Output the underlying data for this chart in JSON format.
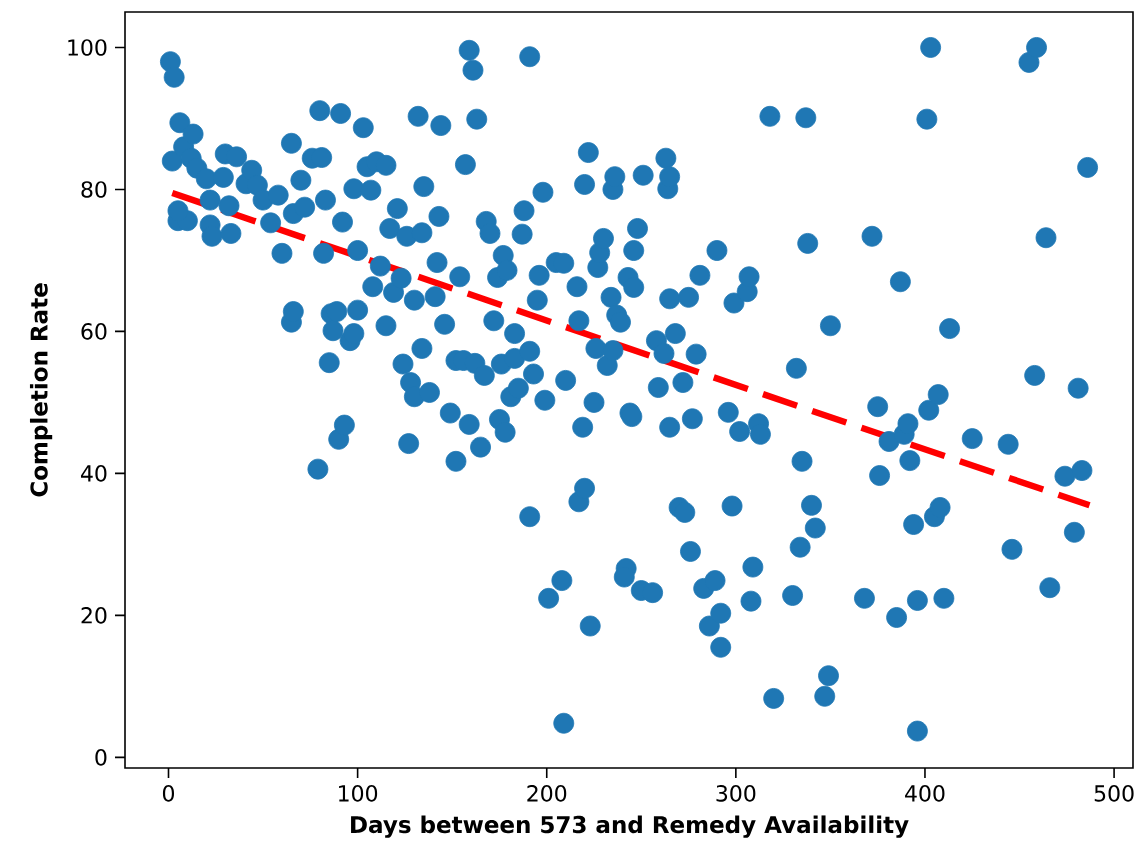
{
  "chart_data": {
    "type": "scatter",
    "xlabel": "Days between 573 and Remedy Availability",
    "ylabel": "Completion Rate",
    "xlim": [
      -23,
      510
    ],
    "ylim": [
      -1.5,
      105
    ],
    "xticks": [
      0,
      100,
      200,
      300,
      400,
      500
    ],
    "yticks": [
      0,
      20,
      40,
      60,
      80,
      100
    ],
    "series": [
      {
        "color": "#1f77b4",
        "marker": "circle",
        "x": [
          1,
          3,
          2,
          6,
          8,
          13,
          5,
          10,
          5,
          12,
          15,
          20,
          22,
          22,
          23,
          30,
          36,
          32,
          33,
          29,
          41,
          44,
          47,
          50,
          54,
          58,
          60,
          65,
          66,
          65,
          66,
          70,
          72,
          76,
          80,
          81,
          79,
          82,
          83,
          85,
          86,
          87,
          89,
          90,
          93,
          91,
          92,
          96,
          98,
          98,
          100,
          100,
          103,
          105,
          107,
          108,
          110,
          112,
          115,
          115,
          117,
          119,
          121,
          123,
          124,
          126,
          127,
          128,
          130,
          130,
          132,
          134,
          135,
          134,
          138,
          142,
          143,
          141,
          144,
          146,
          149,
          152,
          152,
          154,
          156,
          157,
          159,
          161,
          159,
          162,
          163,
          165,
          167,
          168,
          170,
          172,
          174,
          175,
          176,
          177,
          178,
          179,
          181,
          183,
          183,
          185,
          187,
          188,
          191,
          191,
          191,
          193,
          195,
          196,
          198,
          199,
          205,
          201,
          208,
          209,
          210,
          209,
          216,
          217,
          217,
          220,
          219,
          220,
          222,
          223,
          225,
          226,
          227,
          228,
          230,
          232,
          234,
          235,
          235,
          236,
          237,
          239,
          242,
          241,
          243,
          244,
          245,
          246,
          246,
          248,
          250,
          251,
          256,
          258,
          259,
          262,
          263,
          264,
          265,
          265,
          265,
          268,
          270,
          272,
          273,
          275,
          276,
          277,
          279,
          281,
          283,
          286,
          289,
          290,
          292,
          292,
          296,
          298,
          299,
          302,
          306,
          307,
          308,
          309,
          312,
          313,
          318,
          320,
          337,
          332,
          330,
          334,
          335,
          338,
          340,
          342,
          349,
          347,
          350,
          368,
          372,
          375,
          376,
          381,
          385,
          387,
          389,
          391,
          392,
          394,
          396,
          396,
          401,
          403,
          402,
          405,
          407,
          408,
          410,
          413,
          425,
          444,
          446,
          455,
          459,
          458,
          464,
          466,
          474,
          479,
          481,
          483,
          486
        ],
        "values": [
          98,
          95.8,
          84,
          89.4,
          86,
          87.8,
          75.6,
          75.6,
          77,
          84.4,
          83,
          81.5,
          78.5,
          75,
          73.4,
          85,
          84.6,
          77.7,
          73.8,
          81.7,
          80.8,
          82.7,
          80.6,
          78.5,
          75.3,
          79.2,
          71,
          86.5,
          76.6,
          61.3,
          62.8,
          81.3,
          77.5,
          84.4,
          91.1,
          84.5,
          40.6,
          71,
          78.5,
          55.6,
          62.5,
          60.1,
          62.8,
          44.8,
          46.8,
          90.7,
          75.4,
          58.7,
          80.1,
          59.7,
          63,
          71.4,
          88.7,
          83.2,
          79.9,
          66.3,
          83.9,
          69.2,
          60.8,
          83.4,
          74.5,
          65.5,
          77.3,
          67.5,
          55.4,
          73.4,
          44.2,
          52.8,
          50.8,
          64.4,
          90.3,
          57.6,
          80.4,
          73.9,
          51.4,
          69.7,
          76.2,
          64.9,
          89,
          61,
          48.5,
          55.9,
          41.7,
          67.7,
          55.9,
          83.5,
          99.6,
          96.8,
          46.9,
          55.5,
          89.9,
          43.7,
          53.8,
          75.5,
          73.8,
          61.5,
          67.6,
          47.6,
          55.4,
          70.7,
          45.8,
          68.6,
          50.8,
          59.7,
          56.2,
          52,
          73.7,
          77,
          33.9,
          98.7,
          57.2,
          54,
          64.4,
          67.9,
          79.6,
          50.3,
          69.7,
          22.4,
          24.9,
          69.6,
          53.1,
          4.8,
          66.3,
          61.5,
          36,
          37.9,
          46.5,
          80.7,
          85.2,
          18.5,
          50,
          57.6,
          69,
          71.1,
          73.1,
          55.2,
          64.8,
          57.3,
          80,
          81.8,
          62.3,
          61.3,
          26.6,
          25.4,
          67.6,
          48.5,
          48,
          71.4,
          66.2,
          74.5,
          23.5,
          82,
          23.2,
          58.7,
          52.1,
          56.9,
          84.4,
          80.1,
          64.6,
          46.5,
          81.8,
          59.7,
          35.2,
          52.8,
          34.5,
          64.8,
          29,
          47.7,
          56.8,
          67.9,
          23.8,
          18.5,
          24.9,
          71.4,
          20.3,
          15.5,
          48.6,
          35.4,
          64,
          45.9,
          65.6,
          67.7,
          22,
          26.8,
          47,
          45.5,
          90.3,
          8.3,
          90.1,
          54.8,
          22.8,
          29.6,
          41.7,
          72.4,
          35.5,
          32.3,
          11.5,
          8.6,
          60.8,
          22.4,
          73.4,
          49.4,
          39.7,
          44.5,
          19.7,
          67,
          45.5,
          47,
          41.8,
          32.8,
          3.7,
          22.1,
          89.9,
          100,
          48.9,
          33.9,
          51.1,
          35.2,
          22.4,
          60.4,
          44.9,
          44.1,
          29.3,
          97.9,
          100,
          53.8,
          73.2,
          23.9,
          39.6,
          31.7,
          52,
          40.4,
          83.1
        ]
      },
      {
        "type": "line",
        "color": "#ff0000",
        "marker": "none",
        "line_style": "dashed",
        "x": [
          2,
          487
        ],
        "values": [
          79.5,
          35.5
        ]
      }
    ]
  }
}
